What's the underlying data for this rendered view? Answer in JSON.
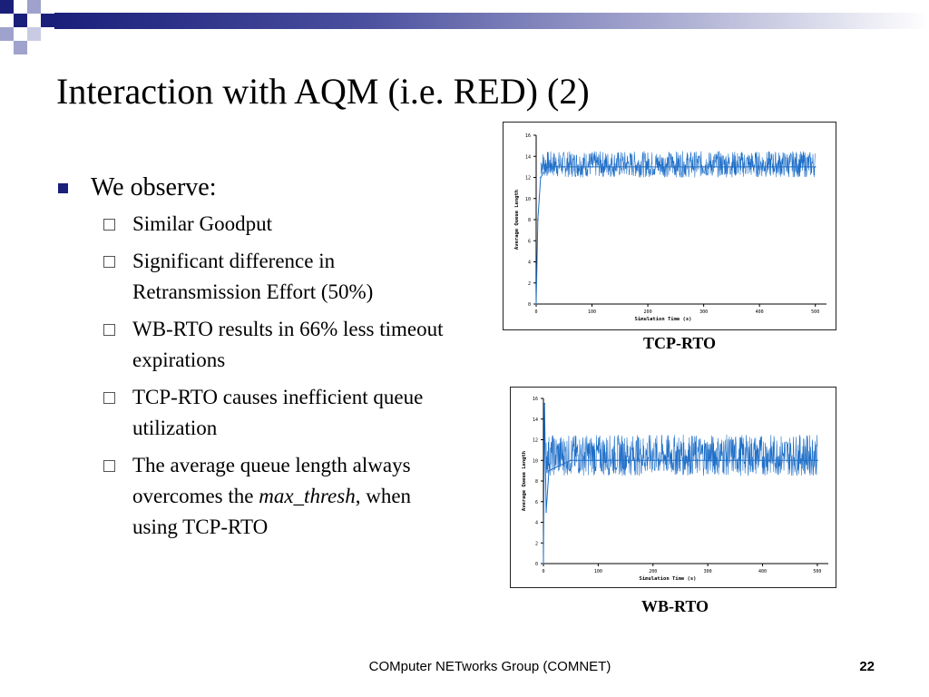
{
  "slide": {
    "title": "Interaction with AQM (i.e. RED) (2)",
    "bullet": "We observe:",
    "sub_bullets": [
      "Similar Goodput",
      "Significant difference in Retransmission Effort (50%)",
      "WB-RTO results in 66% less timeout expirations",
      "TCP-RTO causes inefficient queue utilization"
    ],
    "last_bullet": {
      "before": "The average queue length always overcomes the ",
      "emphasis": "max_thresh",
      "after": ", when using TCP-RTO"
    },
    "footer": "COMputer NETworks Group (COMNET)",
    "page_number": "22"
  },
  "colors": {
    "accent": "#1a1f7a",
    "series": "#1f6fc8"
  },
  "chart_data": [
    {
      "type": "line",
      "caption": "TCP-RTO",
      "xlabel": "Simulation Time (s)",
      "ylabel": "Average Queue Length",
      "xlim": [
        0,
        520
      ],
      "ylim": [
        0,
        16
      ],
      "xticks": [
        0,
        100,
        200,
        300,
        400,
        500
      ],
      "yticks": [
        0,
        2,
        4,
        6,
        8,
        10,
        12,
        14,
        16
      ],
      "grid": false,
      "series": [
        {
          "x": [
            0,
            3,
            8,
            20,
            50,
            100,
            150,
            200,
            250,
            300,
            350,
            400,
            450,
            500
          ],
          "y": [
            0,
            8,
            12,
            13,
            13,
            13,
            13,
            13,
            13,
            13,
            13,
            13,
            13,
            13
          ],
          "band_low": 12,
          "band_high": 14.5
        }
      ]
    },
    {
      "type": "line",
      "caption": "WB-RTO",
      "xlabel": "Simulation Time (s)",
      "ylabel": "Average Queue Length",
      "xlim": [
        0,
        520
      ],
      "ylim": [
        0,
        16
      ],
      "xticks": [
        0,
        100,
        200,
        300,
        400,
        500
      ],
      "yticks": [
        0,
        2,
        4,
        6,
        8,
        10,
        12,
        14,
        16
      ],
      "grid": false,
      "series": [
        {
          "x": [
            0,
            2,
            5,
            10,
            30,
            50,
            100,
            150,
            200,
            250,
            300,
            350,
            400,
            450,
            500
          ],
          "y": [
            0,
            15.5,
            5,
            9,
            9.5,
            10,
            10,
            10,
            10,
            10,
            10,
            10,
            10,
            10,
            10
          ],
          "band_low": 8.5,
          "band_high": 12.5
        }
      ]
    }
  ]
}
